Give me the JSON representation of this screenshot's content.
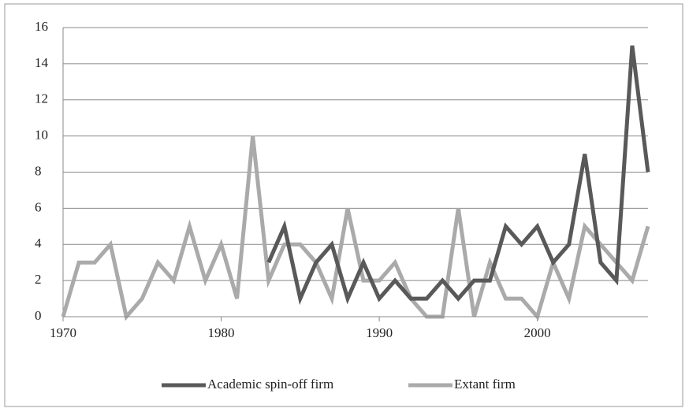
{
  "chart_data": {
    "type": "line",
    "x": [
      1970,
      1971,
      1972,
      1973,
      1974,
      1975,
      1976,
      1977,
      1978,
      1979,
      1980,
      1981,
      1982,
      1983,
      1984,
      1985,
      1986,
      1987,
      1988,
      1989,
      1990,
      1991,
      1992,
      1993,
      1994,
      1995,
      1996,
      1997,
      1998,
      1999,
      2000,
      2001,
      2002,
      2003,
      2004,
      2005,
      2006,
      2007
    ],
    "series": [
      {
        "name": "Academic spin-off firm",
        "color": "#595959",
        "values": [
          null,
          null,
          null,
          null,
          null,
          null,
          null,
          null,
          null,
          null,
          null,
          null,
          null,
          3,
          5,
          1,
          3,
          4,
          1,
          3,
          1,
          2,
          1,
          1,
          2,
          1,
          2,
          2,
          5,
          4,
          5,
          3,
          4,
          9,
          3,
          2,
          15,
          8
        ]
      },
      {
        "name": "Extant firm",
        "color": "#aaaaaa",
        "values": [
          0,
          3,
          3,
          4,
          0,
          1,
          3,
          2,
          5,
          2,
          4,
          1,
          10,
          2,
          4,
          4,
          3,
          1,
          6,
          2,
          2,
          3,
          1,
          0,
          0,
          6,
          0,
          3,
          1,
          1,
          0,
          3,
          1,
          5,
          4,
          3,
          2,
          5
        ]
      }
    ],
    "xlim": [
      1970,
      2007
    ],
    "xticks": [
      1970,
      1980,
      1990,
      2000
    ],
    "ylim": [
      0,
      16
    ],
    "yticks": [
      0,
      2,
      4,
      6,
      8,
      10,
      12,
      14,
      16
    ],
    "grid": true,
    "legend": "bottom"
  }
}
